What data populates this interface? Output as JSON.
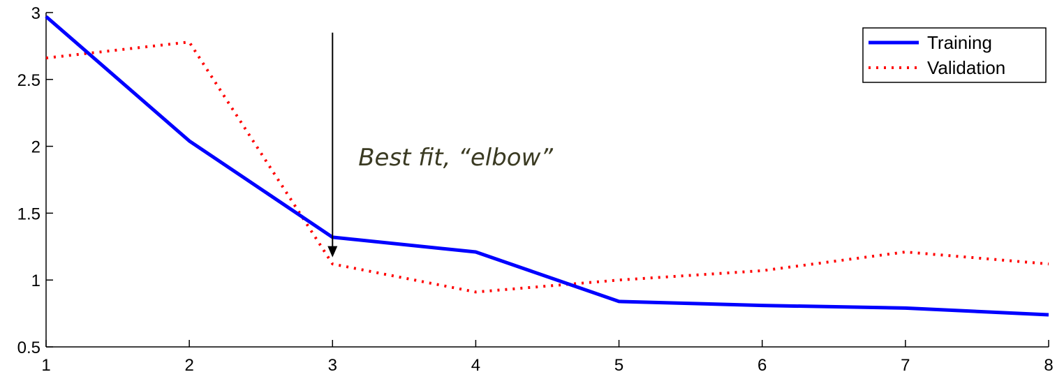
{
  "chart_data": {
    "type": "line",
    "title": "",
    "xlabel": "",
    "ylabel": "",
    "xlim": [
      1,
      8
    ],
    "ylim": [
      0.5,
      3
    ],
    "xticks": [
      "1",
      "2",
      "3",
      "4",
      "5",
      "6",
      "7",
      "8"
    ],
    "yticks": [
      "0.5",
      "1",
      "1.5",
      "2",
      "2.5",
      "3"
    ],
    "grid": false,
    "legend_position": "top-right",
    "x": [
      1,
      2,
      3,
      4,
      5,
      6,
      7,
      8
    ],
    "series": [
      {
        "name": "Training",
        "style": "solid",
        "color": "#0000ff",
        "values": [
          2.97,
          2.04,
          1.32,
          1.21,
          0.84,
          0.81,
          0.79,
          0.74
        ]
      },
      {
        "name": "Validation",
        "style": "dotted",
        "color": "#ff0000",
        "values": [
          2.66,
          2.78,
          1.12,
          0.91,
          1.0,
          1.07,
          1.21,
          1.12
        ]
      }
    ],
    "annotations": [
      {
        "text": "Best fit, “elbow”",
        "arrow_x": 3,
        "arrow_y_start": 2.85,
        "arrow_y_end": 1.17,
        "text_x": 3.18,
        "text_y": 1.92
      }
    ]
  }
}
